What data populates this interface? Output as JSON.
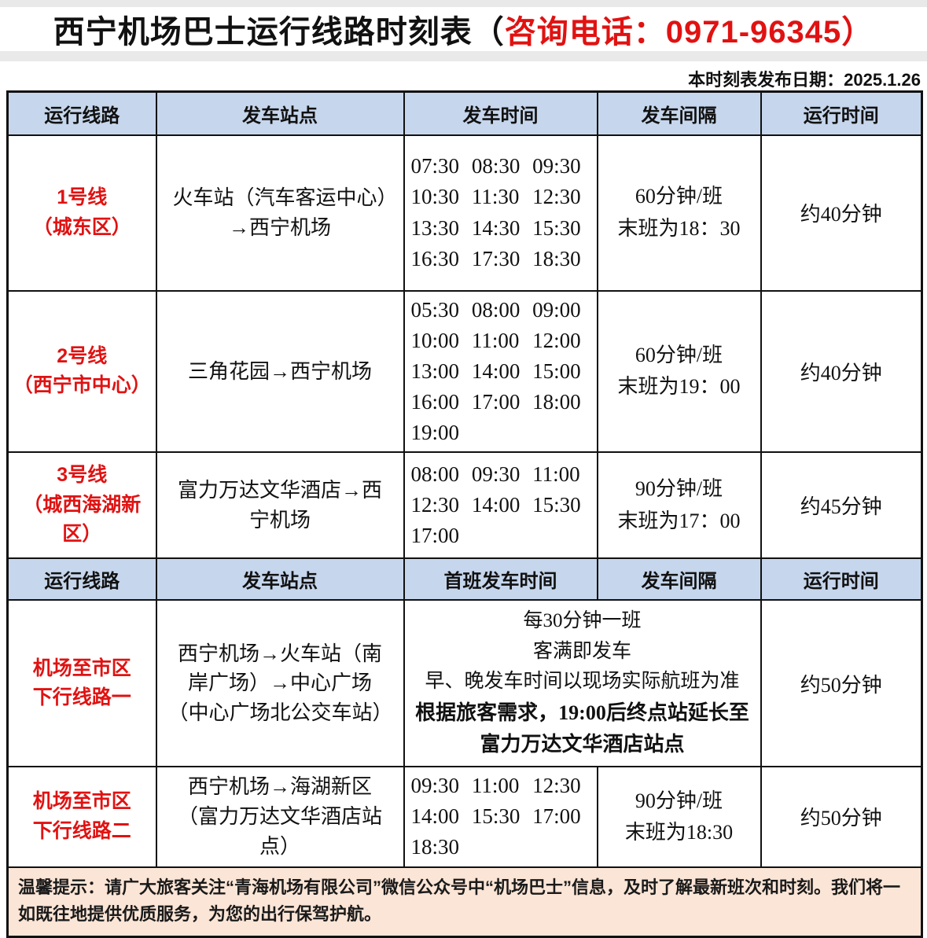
{
  "page": {
    "title_black": "西宁机场巴士运行线路时刻表（",
    "title_phone": "咨询电话：0971-96345）",
    "publish_date": "本时刻表发布日期：2025.1.26"
  },
  "colors": {
    "header_bg": "#c6d6ec",
    "footer_bg": "#fbe5d6",
    "accent_red": "#e01212"
  },
  "table": {
    "header1": [
      "运行线路",
      "发车站点",
      "发车时间",
      "发车间隔",
      "运行时间"
    ],
    "header2": [
      "运行线路",
      "发车站点",
      "首班发车时间",
      "发车间隔",
      "运行时间"
    ],
    "routes": [
      {
        "line1": "1号线",
        "line2": "（城东区）",
        "station": "火车站（汽车客运中心）→西宁机场",
        "times": [
          "07:30",
          "08:30",
          "09:30",
          "10:30",
          "11:30",
          "12:30",
          "13:30",
          "14:30",
          "15:30",
          "16:30",
          "17:30",
          "18:30"
        ],
        "interval1": "60分钟/班",
        "interval2": "末班为18：30",
        "duration": "约40分钟"
      },
      {
        "line1": "2号线",
        "line2": "（西宁市中心）",
        "station": "三角花园→西宁机场",
        "times": [
          "05:30",
          "08:00",
          "09:00",
          "10:00",
          "11:00",
          "12:00",
          "13:00",
          "14:00",
          "15:00",
          "16:00",
          "17:00",
          "18:00",
          "19:00"
        ],
        "interval1": "60分钟/班",
        "interval2": "末班为19：00",
        "duration": "约40分钟"
      },
      {
        "line1": "3号线",
        "line2": "（城西海湖新区）",
        "station": "富力万达文华酒店→西宁机场",
        "times": [
          "08:00",
          "09:30",
          "11:00",
          "12:30",
          "14:00",
          "15:30",
          "17:00"
        ],
        "interval1": "90分钟/班",
        "interval2": "末班为17：00",
        "duration": "约45分钟"
      },
      {
        "line1": "机场至市区",
        "line2": "下行线路一",
        "station": "西宁机场→火车站（南岸广场）→中心广场（中心广场北公交车站）",
        "info_lines": [
          "每30分钟一班",
          "客满即发车",
          "早、晚发车时间以现场实际航班为准"
        ],
        "info_lines_bold": [
          "根据旅客需求，19:00后终点站延长至",
          "富力万达文华酒店站点"
        ],
        "duration": "约50分钟"
      },
      {
        "line1": "机场至市区",
        "line2": "下行线路二",
        "station": "西宁机场→海湖新区（富力万达文华酒店站点）",
        "times": [
          "09:30",
          "11:00",
          "12:30",
          "14:00",
          "15:30",
          "17:00",
          "18:30"
        ],
        "interval1": "90分钟/班",
        "interval2": "末班为18:30",
        "duration": "约50分钟"
      }
    ]
  },
  "footer": {
    "notice": "温馨提示：请广大旅客关注“青海机场有限公司”微信公众号中“机场巴士”信息，及时了解最新班次和时刻。我们将一如既往地提供优质服务，为您的出行保驾护航。"
  }
}
